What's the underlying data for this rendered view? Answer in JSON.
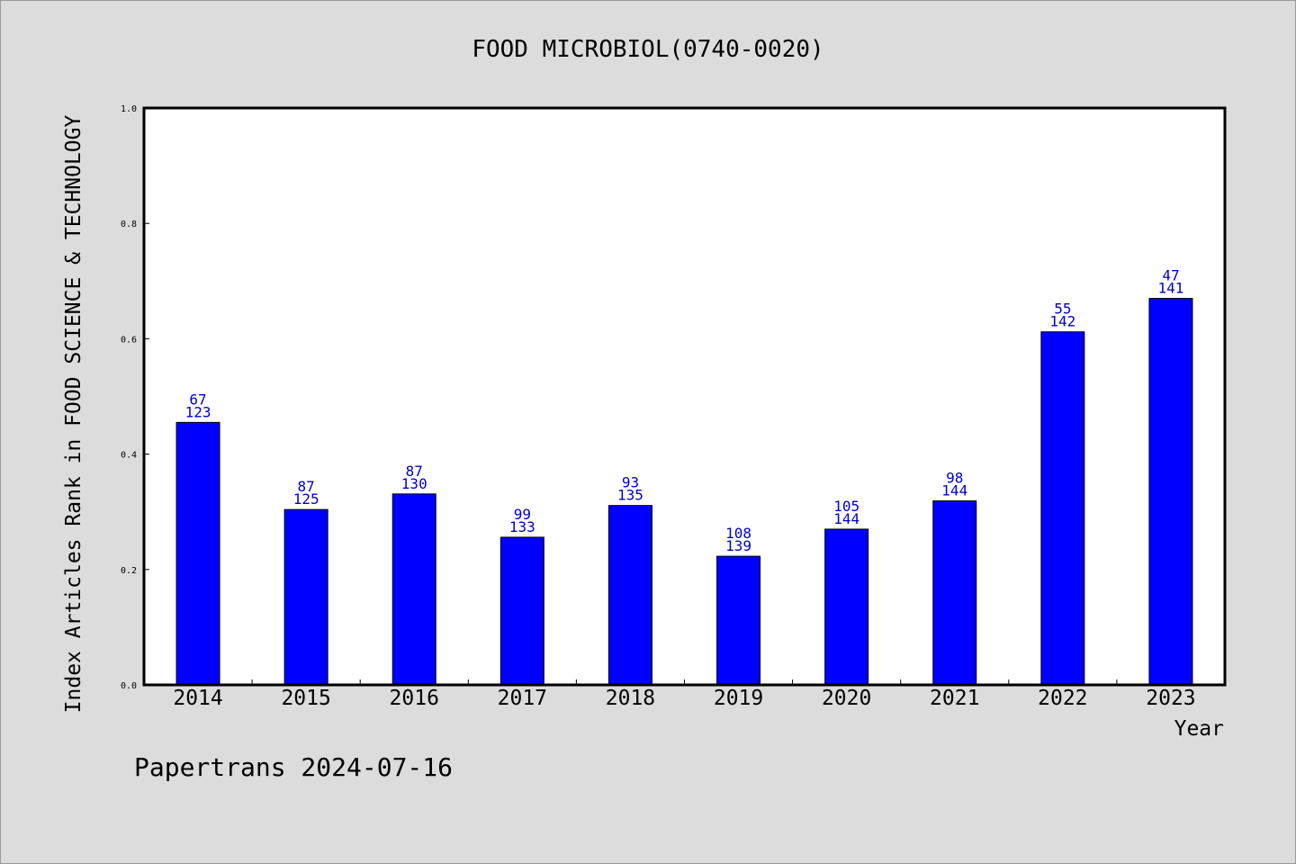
{
  "chart_data": {
    "type": "bar",
    "title": "FOOD MICROBIOL(0740-0020)",
    "xlabel": "Year",
    "ylabel": "Index Articles Rank in FOOD SCIENCE & TECHNOLOGY",
    "ylim": [
      0,
      1.0
    ],
    "yticks": [
      "0.0",
      "0.2",
      "0.4",
      "0.6",
      "0.8",
      "1.0"
    ],
    "categories": [
      "2014",
      "2015",
      "2016",
      "2017",
      "2018",
      "2019",
      "2020",
      "2021",
      "2022",
      "2023"
    ],
    "values": [
      0.455,
      0.304,
      0.331,
      0.256,
      0.311,
      0.223,
      0.27,
      0.319,
      0.612,
      0.67
    ],
    "label_top": [
      "67",
      "87",
      "87",
      "99",
      "93",
      "108",
      "105",
      "98",
      "55",
      "47"
    ],
    "label_bottom": [
      "123",
      "125",
      "130",
      "133",
      "135",
      "139",
      "144",
      "144",
      "142",
      "141"
    ],
    "bar_color": "#0000ff",
    "label_color": "#0000cd",
    "grid": false,
    "legend": "none"
  },
  "footer": "Papertrans 2024-07-16"
}
